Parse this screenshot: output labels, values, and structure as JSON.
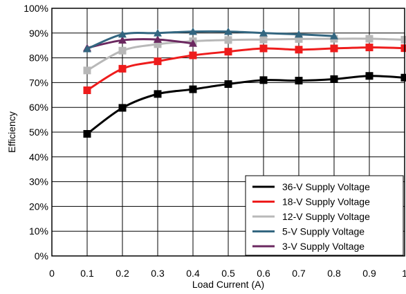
{
  "chart_data": {
    "type": "line",
    "title": "",
    "xlabel": "Load Current (A)",
    "ylabel": "Efficiency",
    "xlim": [
      0,
      1
    ],
    "ylim": [
      0,
      100
    ],
    "x_ticks": [
      "0",
      "0.1",
      "0.2",
      "0.3",
      "0.4",
      "0.5",
      "0.6",
      "0.7",
      "0.8",
      "0.9",
      "1"
    ],
    "y_ticks": [
      "0%",
      "10%",
      "20%",
      "30%",
      "40%",
      "50%",
      "60%",
      "70%",
      "80%",
      "90%",
      "100%"
    ],
    "grid": true,
    "legend_position": "bottom-right",
    "series": [
      {
        "name": "36-V Supply Voltage",
        "color": "#000000",
        "marker": "square",
        "x": [
          0.1,
          0.2,
          0.3,
          0.4,
          0.5,
          0.6,
          0.7,
          0.8,
          0.9,
          1.0
        ],
        "y": [
          49.3,
          59.8,
          65.4,
          67.3,
          69.4,
          71.0,
          70.8,
          71.4,
          72.7,
          72.0
        ]
      },
      {
        "name": "18-V Supply Voltage",
        "color": "#ee1c1c",
        "marker": "square",
        "x": [
          0.1,
          0.2,
          0.3,
          0.4,
          0.5,
          0.6,
          0.7,
          0.8,
          0.9,
          1.0
        ],
        "y": [
          66.9,
          75.6,
          78.6,
          81.0,
          82.5,
          83.8,
          83.3,
          83.8,
          84.2,
          83.9
        ]
      },
      {
        "name": "12-V Supply Voltage",
        "color": "#b8b8b8",
        "marker": "square",
        "x": [
          0.1,
          0.2,
          0.3,
          0.4,
          0.5,
          0.6,
          0.7,
          0.8,
          0.9,
          1.0
        ],
        "y": [
          74.9,
          82.9,
          85.5,
          86.7,
          87.2,
          87.4,
          87.6,
          87.7,
          87.7,
          87.3
        ]
      },
      {
        "name": "5-V Supply Voltage",
        "color": "#336680",
        "marker": "triangle",
        "x": [
          0.1,
          0.2,
          0.3,
          0.4,
          0.5,
          0.6,
          0.7,
          0.8
        ],
        "y": [
          83.6,
          89.5,
          90.0,
          90.6,
          90.6,
          90.0,
          89.5,
          88.8
        ]
      },
      {
        "name": "3-V Supply Voltage",
        "color": "#6b2860",
        "marker": "triangle",
        "x": [
          0.1,
          0.2,
          0.3,
          0.4
        ],
        "y": [
          84.0,
          87.1,
          87.4,
          85.8
        ]
      }
    ]
  }
}
